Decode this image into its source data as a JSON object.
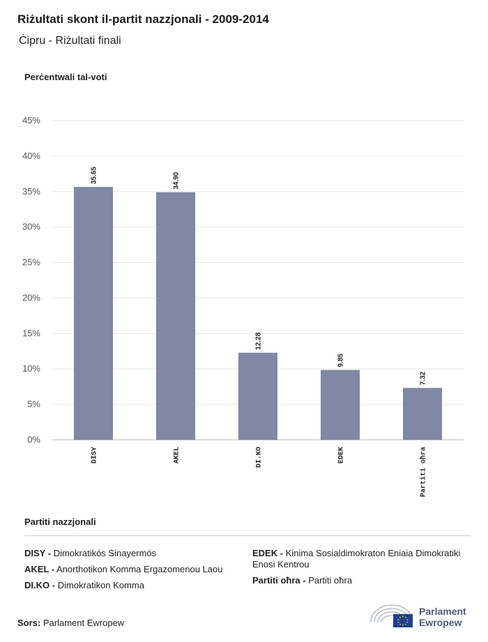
{
  "header": {
    "title": "Riżultati skont il-partit nazzjonali - 2009-2014",
    "subtitle": "Ċipru - Riżultati finali"
  },
  "chart_data": {
    "type": "bar",
    "ylabel": "Perċentwali tal-voti",
    "categories": [
      "DISY",
      "AKEL",
      "DI.KO",
      "EDEK",
      "Partiti oħra"
    ],
    "values": [
      35.65,
      34.9,
      12.28,
      9.85,
      7.32
    ],
    "value_labels": [
      "35.65",
      "34.90",
      "12.28",
      "9.85",
      "7.32"
    ],
    "ylim": [
      0,
      45
    ],
    "yticks": [
      0,
      5,
      10,
      15,
      20,
      25,
      30,
      35,
      40,
      45
    ],
    "ytick_labels": [
      "0%",
      "5%",
      "10%",
      "15%",
      "20%",
      "25%",
      "30%",
      "35%",
      "40%",
      "45%"
    ],
    "grid": true,
    "bar_color": "#7f88a5"
  },
  "legend": {
    "title": "Partiti nazzjonali",
    "left": [
      {
        "abbr": "DISY -",
        "name": "Dimokratikós Sinayermós"
      },
      {
        "abbr": "AKEL -",
        "name": "Anorthotikon Komma Ergazomenou Laou"
      },
      {
        "abbr": "DI.KO -",
        "name": "Dimokratikon Komma"
      }
    ],
    "right": [
      {
        "abbr": "EDEK -",
        "name": "Kinima Sosialdimokraton Eniaia Dimokratiki Enosi Kentrou"
      },
      {
        "abbr": "Partiti oħra -",
        "name": "Partiti oħra"
      }
    ]
  },
  "footer": {
    "source_label": "Sors:",
    "source_value": "Parlament Ewropew",
    "logo_line1": "Parlament",
    "logo_line2": "Ewropew"
  }
}
